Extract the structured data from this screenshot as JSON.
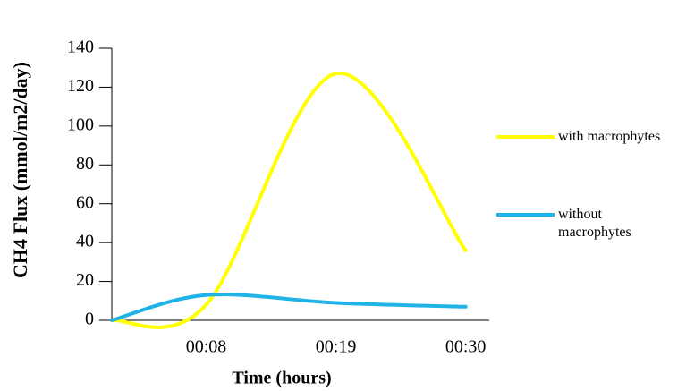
{
  "chart_data": {
    "type": "line",
    "y_label": "CH4 Flux (mmol/m2/day)",
    "x_label": "Time (hours)",
    "x": [
      0,
      8,
      19,
      30
    ],
    "xlim": [
      0,
      32
    ],
    "xticks": [
      {
        "value": 8,
        "label": "00:08"
      },
      {
        "value": 19,
        "label": "00:19"
      },
      {
        "value": 30,
        "label": "00:30"
      }
    ],
    "ylim": [
      0,
      140
    ],
    "yticks": [
      0,
      20,
      40,
      60,
      80,
      100,
      120,
      140
    ],
    "smooth": true,
    "series": [
      {
        "name": "with macrophytes",
        "color": "#ffff00",
        "values": [
          0,
          8,
          127,
          36
        ]
      },
      {
        "name": "without macrophytes",
        "color": "#1fb3e8",
        "values": [
          0,
          13,
          9,
          7
        ]
      }
    ]
  }
}
